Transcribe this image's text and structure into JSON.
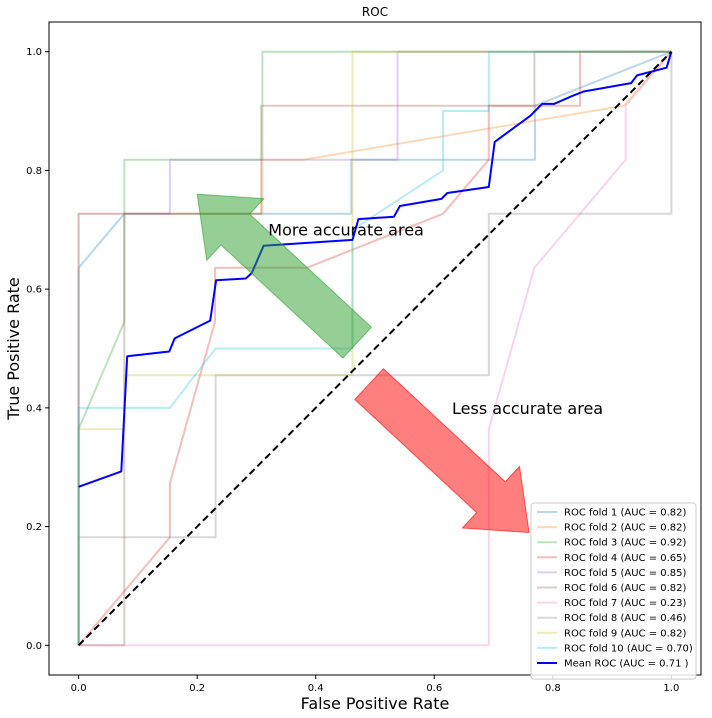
{
  "chart_data": {
    "type": "line",
    "title": "ROC",
    "xlabel": "False Positive Rate",
    "ylabel": "True Positive Rate",
    "xlim": [
      -0.05,
      1.05
    ],
    "ylim": [
      -0.05,
      1.05
    ],
    "xticks": [
      "0.0",
      "0.2",
      "0.4",
      "0.6",
      "0.8",
      "1.0"
    ],
    "yticks": [
      "0.0",
      "0.2",
      "0.4",
      "0.6",
      "0.8",
      "1.0"
    ],
    "grid": false,
    "legend_position": "lower right",
    "series": [
      {
        "name": "ROC fold 1 (AUC = 0.82)",
        "color": "#1f77b4",
        "opacity": 0.3,
        "width": 2,
        "x": [
          0,
          0,
          0.077,
          0.077,
          0.46,
          0.46,
          0.77,
          0.77,
          1
        ],
        "y": [
          0,
          0.636,
          0.727,
          0.727,
          0.727,
          0.818,
          0.818,
          0.909,
          1
        ]
      },
      {
        "name": "ROC fold 2 (AUC = 0.82)",
        "color": "#ff7f0e",
        "opacity": 0.3,
        "width": 2,
        "x": [
          0,
          0,
          0.31,
          0.31,
          0.38,
          0.92,
          1
        ],
        "y": [
          0,
          0.727,
          0.727,
          0.818,
          0.818,
          0.909,
          1
        ]
      },
      {
        "name": "ROC fold 3 (AUC = 0.92)",
        "color": "#2ca02c",
        "opacity": 0.3,
        "width": 2,
        "x": [
          0,
          0,
          0.077,
          0.077,
          0.31,
          0.31,
          1
        ],
        "y": [
          0,
          0.364,
          0.545,
          0.818,
          0.818,
          1,
          1
        ]
      },
      {
        "name": "ROC fold 4 (AUC = 0.65)",
        "color": "#d62728",
        "opacity": 0.3,
        "width": 2,
        "x": [
          0,
          0.077,
          0.154,
          0.154,
          0.23,
          0.23,
          0.385,
          0.615,
          0.692,
          0.692,
          0.846,
          0.846,
          1
        ],
        "y": [
          0,
          0.091,
          0.182,
          0.273,
          0.545,
          0.636,
          0.636,
          0.727,
          0.818,
          0.909,
          0.909,
          1,
          1
        ]
      },
      {
        "name": "ROC fold 5 (AUC = 0.85)",
        "color": "#9467bd",
        "opacity": 0.3,
        "width": 2,
        "x": [
          0,
          0,
          0.154,
          0.154,
          0.538,
          0.538,
          1
        ],
        "y": [
          0,
          0.727,
          0.727,
          0.818,
          0.818,
          1,
          1
        ]
      },
      {
        "name": "ROC fold 6 (AUC = 0.82)",
        "color": "#8c564b",
        "opacity": 0.3,
        "width": 2,
        "x": [
          0,
          0.077,
          0.077,
          0.308,
          0.308,
          0.769,
          0.769,
          1
        ],
        "y": [
          0,
          0,
          0.727,
          0.727,
          0.909,
          0.909,
          1,
          1
        ]
      },
      {
        "name": "ROC fold 7 (AUC = 0.23)",
        "color": "#e377c2",
        "opacity": 0.3,
        "width": 2,
        "x": [
          0,
          0.692,
          0.692,
          0.769,
          0.923,
          0.923,
          1
        ],
        "y": [
          0,
          0,
          0.364,
          0.636,
          0.818,
          0.909,
          1
        ]
      },
      {
        "name": "ROC fold 8 (AUC = 0.46)",
        "color": "#7f7f7f",
        "opacity": 0.3,
        "width": 2,
        "x": [
          0,
          0,
          0.231,
          0.231,
          0.692,
          0.692,
          1,
          1
        ],
        "y": [
          0,
          0.182,
          0.182,
          0.455,
          0.455,
          0.727,
          0.727,
          1
        ]
      },
      {
        "name": "ROC fold 9 (AUC = 0.82)",
        "color": "#bcbd22",
        "opacity": 0.3,
        "width": 2,
        "x": [
          0,
          0,
          0.077,
          0.077,
          0.462,
          0.462,
          1
        ],
        "y": [
          0,
          0.364,
          0.364,
          0.455,
          0.455,
          1,
          1
        ]
      },
      {
        "name": "ROC fold 10 (AUC = 0.70)",
        "color": "#17becf",
        "opacity": 0.3,
        "width": 2,
        "x": [
          0,
          0,
          0.154,
          0.231,
          0.462,
          0.462,
          0.615,
          0.615,
          0.692,
          0.692,
          1
        ],
        "y": [
          0,
          0.4,
          0.4,
          0.5,
          0.5,
          0.7,
          0.8,
          0.9,
          0.9,
          1,
          1
        ]
      },
      {
        "name": "Mean ROC (AUC = 0.71 )",
        "color": "#0000ff",
        "opacity": 1,
        "width": 2,
        "x": [
          0,
          0.072,
          0.082,
          0.153,
          0.162,
          0.222,
          0.232,
          0.282,
          0.292,
          0.312,
          0.462,
          0.472,
          0.532,
          0.542,
          0.612,
          0.622,
          0.692,
          0.702,
          0.762,
          0.782,
          0.802,
          0.832,
          0.852,
          0.932,
          0.942,
          0.992,
          1
        ],
        "y": [
          0.267,
          0.293,
          0.487,
          0.495,
          0.517,
          0.547,
          0.615,
          0.618,
          0.627,
          0.673,
          0.683,
          0.718,
          0.722,
          0.74,
          0.752,
          0.762,
          0.772,
          0.848,
          0.892,
          0.912,
          0.912,
          0.925,
          0.933,
          0.947,
          0.96,
          0.973,
          1
        ]
      },
      {
        "name": "",
        "color": "#000000",
        "opacity": 1,
        "width": 2,
        "dash": true,
        "x": [
          0,
          1
        ],
        "y": [
          0,
          1
        ]
      }
    ],
    "annotations": [
      {
        "text": "More accurate area",
        "x": 0.32,
        "y": 0.69
      },
      {
        "text": "Less accurate area",
        "x": 0.63,
        "y": 0.39
      }
    ],
    "arrows": [
      {
        "color": "#2ca02c",
        "from": [
          0.47,
          0.51
        ],
        "to": [
          0.2,
          0.76
        ]
      },
      {
        "color": "#ff0000",
        "from": [
          0.49,
          0.44
        ],
        "to": [
          0.76,
          0.19
        ]
      }
    ]
  }
}
